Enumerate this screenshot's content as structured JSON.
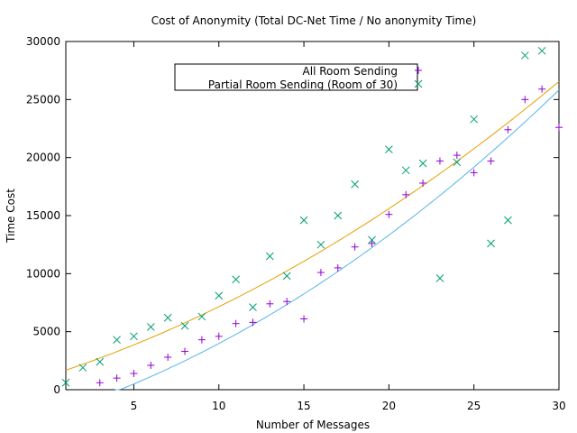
{
  "chart_data": {
    "type": "scatter",
    "title": "Cost of Anonymity (Total DC-Net Time / No anonymity Time)",
    "xlabel": "Number of Messages",
    "ylabel": "Time Cost",
    "xlim": [
      1,
      30
    ],
    "ylim": [
      0,
      30000
    ],
    "xticks": [
      5,
      10,
      15,
      20,
      25,
      30
    ],
    "yticks": [
      0,
      5000,
      10000,
      15000,
      20000,
      25000,
      30000
    ],
    "grid": false,
    "legend_position": "top-center",
    "series": [
      {
        "name": "All Room Sending",
        "marker": "plus",
        "color": "#9400d3",
        "x": [
          3,
          4,
          5,
          6,
          7,
          8,
          9,
          10,
          11,
          12,
          13,
          14,
          15,
          16,
          17,
          18,
          19,
          20,
          21,
          22,
          23,
          24,
          25,
          26,
          27,
          28,
          29,
          30
        ],
        "y": [
          600,
          1000,
          1400,
          2100,
          2800,
          3300,
          4300,
          4600,
          5700,
          5800,
          7400,
          7600,
          6100,
          10100,
          10500,
          12300,
          12600,
          15100,
          16800,
          17800,
          19700,
          20200,
          18700,
          19700,
          22400,
          25000,
          25900,
          22600
        ]
      },
      {
        "name": "Partial Room Sending (Room of 30)",
        "marker": "cross",
        "color": "#009e73",
        "x": [
          1,
          2,
          3,
          4,
          5,
          6,
          7,
          8,
          9,
          10,
          11,
          12,
          13,
          14,
          15,
          16,
          17,
          18,
          19,
          20,
          21,
          22,
          23,
          24,
          25,
          26,
          27,
          28,
          29
        ],
        "y": [
          600,
          1900,
          2400,
          4300,
          4600,
          5400,
          6200,
          5500,
          6300,
          8100,
          9500,
          7100,
          11500,
          9800,
          14600,
          12500,
          15000,
          17700,
          12900,
          20700,
          18900,
          19500,
          9600,
          19600,
          23300,
          12600,
          14600,
          28800,
          29200
        ]
      }
    ],
    "fit_lines": [
      {
        "color": "#e69f00",
        "x_range": [
          1,
          30
        ],
        "coefficients": [
          1200,
          470,
          12.5
        ]
      },
      {
        "color": "#56b4e9",
        "x_range": [
          3.9,
          30
        ],
        "coefficients": [
          -2200,
          460,
          15.8
        ]
      }
    ]
  }
}
